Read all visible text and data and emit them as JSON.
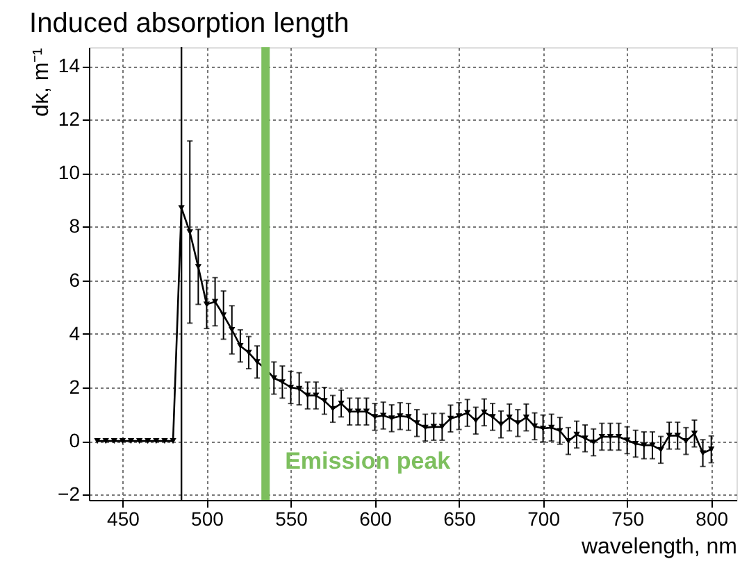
{
  "chart_data": {
    "type": "line",
    "title": "Induced absorption length",
    "xlabel": "wavelength, nm",
    "ylabel": "dκ, m⁻¹",
    "x": [
      435,
      440,
      445,
      450,
      455,
      460,
      465,
      470,
      475,
      480,
      485,
      490,
      495,
      500,
      505,
      510,
      515,
      520,
      525,
      530,
      535,
      540,
      545,
      550,
      555,
      560,
      565,
      570,
      575,
      580,
      585,
      590,
      595,
      600,
      605,
      610,
      615,
      620,
      625,
      630,
      635,
      640,
      645,
      650,
      655,
      660,
      665,
      670,
      675,
      680,
      685,
      690,
      695,
      700,
      705,
      710,
      715,
      720,
      725,
      730,
      735,
      740,
      745,
      750,
      755,
      760,
      765,
      770,
      775,
      780,
      785,
      790,
      795,
      800
    ],
    "series": [
      {
        "color": "#000000",
        "values": [
          0,
          0,
          0,
          0,
          0,
          0,
          0,
          0,
          0,
          0,
          8.7,
          7.8,
          6.5,
          5.1,
          5.2,
          4.7,
          4.15,
          3.55,
          3.3,
          2.95,
          2.7,
          2.35,
          2.2,
          2.0,
          1.95,
          1.7,
          1.7,
          1.5,
          1.2,
          1.4,
          1.1,
          1.1,
          1.1,
          0.9,
          0.95,
          0.85,
          0.93,
          0.9,
          0.67,
          0.5,
          0.53,
          0.53,
          0.84,
          0.93,
          1.05,
          0.76,
          1.07,
          0.9,
          0.62,
          0.88,
          0.67,
          0.88,
          0.55,
          0.47,
          0.5,
          0.38,
          0.0,
          0.24,
          0.1,
          -0.05,
          0.16,
          0.16,
          0.16,
          0.03,
          -0.1,
          -0.16,
          -0.16,
          -0.33,
          0.2,
          0.2,
          0.0,
          0.28,
          -0.45,
          -0.31
        ],
        "errors": [
          null,
          null,
          null,
          null,
          null,
          null,
          null,
          null,
          null,
          null,
          null,
          [
            4.4,
            11.2
          ],
          1.4,
          0.9,
          0.9,
          0.9,
          0.9,
          0.6,
          0.6,
          0.6,
          null,
          0.6,
          0.6,
          0.6,
          0.6,
          0.5,
          0.5,
          0.5,
          0.5,
          0.5,
          0.5,
          0.5,
          0.5,
          0.5,
          0.5,
          0.5,
          0.5,
          0.5,
          0.5,
          0.5,
          0.5,
          0.5,
          0.5,
          0.5,
          0.5,
          0.5,
          0.5,
          0.5,
          0.5,
          0.5,
          0.5,
          0.5,
          0.5,
          0.5,
          0.5,
          0.5,
          0.5,
          0.5,
          0.5,
          0.5,
          0.5,
          0.5,
          0.5,
          0.5,
          0.5,
          0.5,
          0.5,
          0.5,
          0.5,
          0.5,
          0.5,
          0.5,
          0.5,
          0.5
        ]
      }
    ],
    "xlim": [
      430,
      815
    ],
    "xticks": [
      450,
      500,
      550,
      600,
      650,
      700,
      750,
      800
    ],
    "ylim": [
      -2.2,
      14.7
    ],
    "yticks": [
      -2,
      0,
      2,
      4,
      6,
      8,
      10,
      12,
      14
    ],
    "grid": true,
    "marker": "triangle",
    "line_style": "solid",
    "ref_lines": [
      {
        "axis": "x",
        "value": 485,
        "color": "#000000"
      },
      {
        "axis": "x",
        "value": 535,
        "color": "#7dbf5e",
        "label": "Emission peak"
      }
    ]
  }
}
